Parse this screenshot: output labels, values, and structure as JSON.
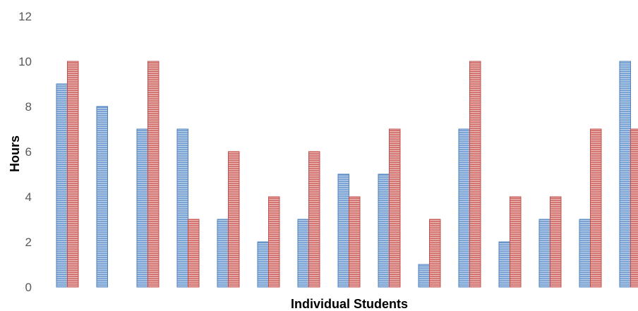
{
  "chart_data": {
    "type": "bar",
    "xlabel": "Individual Students",
    "ylabel": "Hours",
    "ylim": [
      0,
      12
    ],
    "y_ticks": [
      "0",
      "2",
      "4",
      "6",
      "8",
      "10",
      "12"
    ],
    "grid": false,
    "legend": "none",
    "series": [
      {
        "values": [
          9,
          8,
          7,
          7,
          3,
          2,
          3,
          5,
          5,
          1,
          7,
          2,
          3,
          3,
          10
        ],
        "color": "#4f81bd"
      },
      {
        "values": [
          10,
          0,
          10,
          3,
          6,
          4,
          6,
          4,
          7,
          3,
          10,
          4,
          4,
          7,
          7
        ],
        "color": "#c0504d"
      }
    ]
  }
}
